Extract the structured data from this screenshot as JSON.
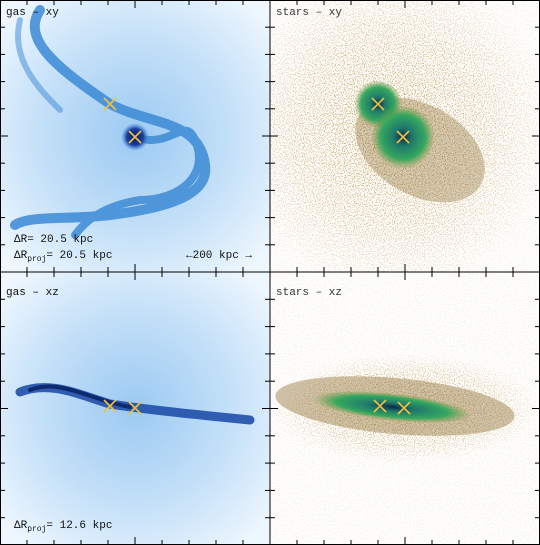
{
  "panels": [
    {
      "title": "gas – xy",
      "labels": [
        {
          "main": "ΔR",
          "rest": "= 20.5 kpc"
        },
        {
          "main": "ΔR",
          "sub": "proj",
          "rest": "= 20.5 kpc"
        }
      ],
      "scale_bar": "←200 kpc →"
    },
    {
      "title": "stars – xy"
    },
    {
      "title": "gas – xz",
      "labels": [
        {
          "main": "ΔR",
          "sub": "proj",
          "rest": "= 12.6 kpc"
        }
      ]
    },
    {
      "title": "stars – xz"
    }
  ]
}
